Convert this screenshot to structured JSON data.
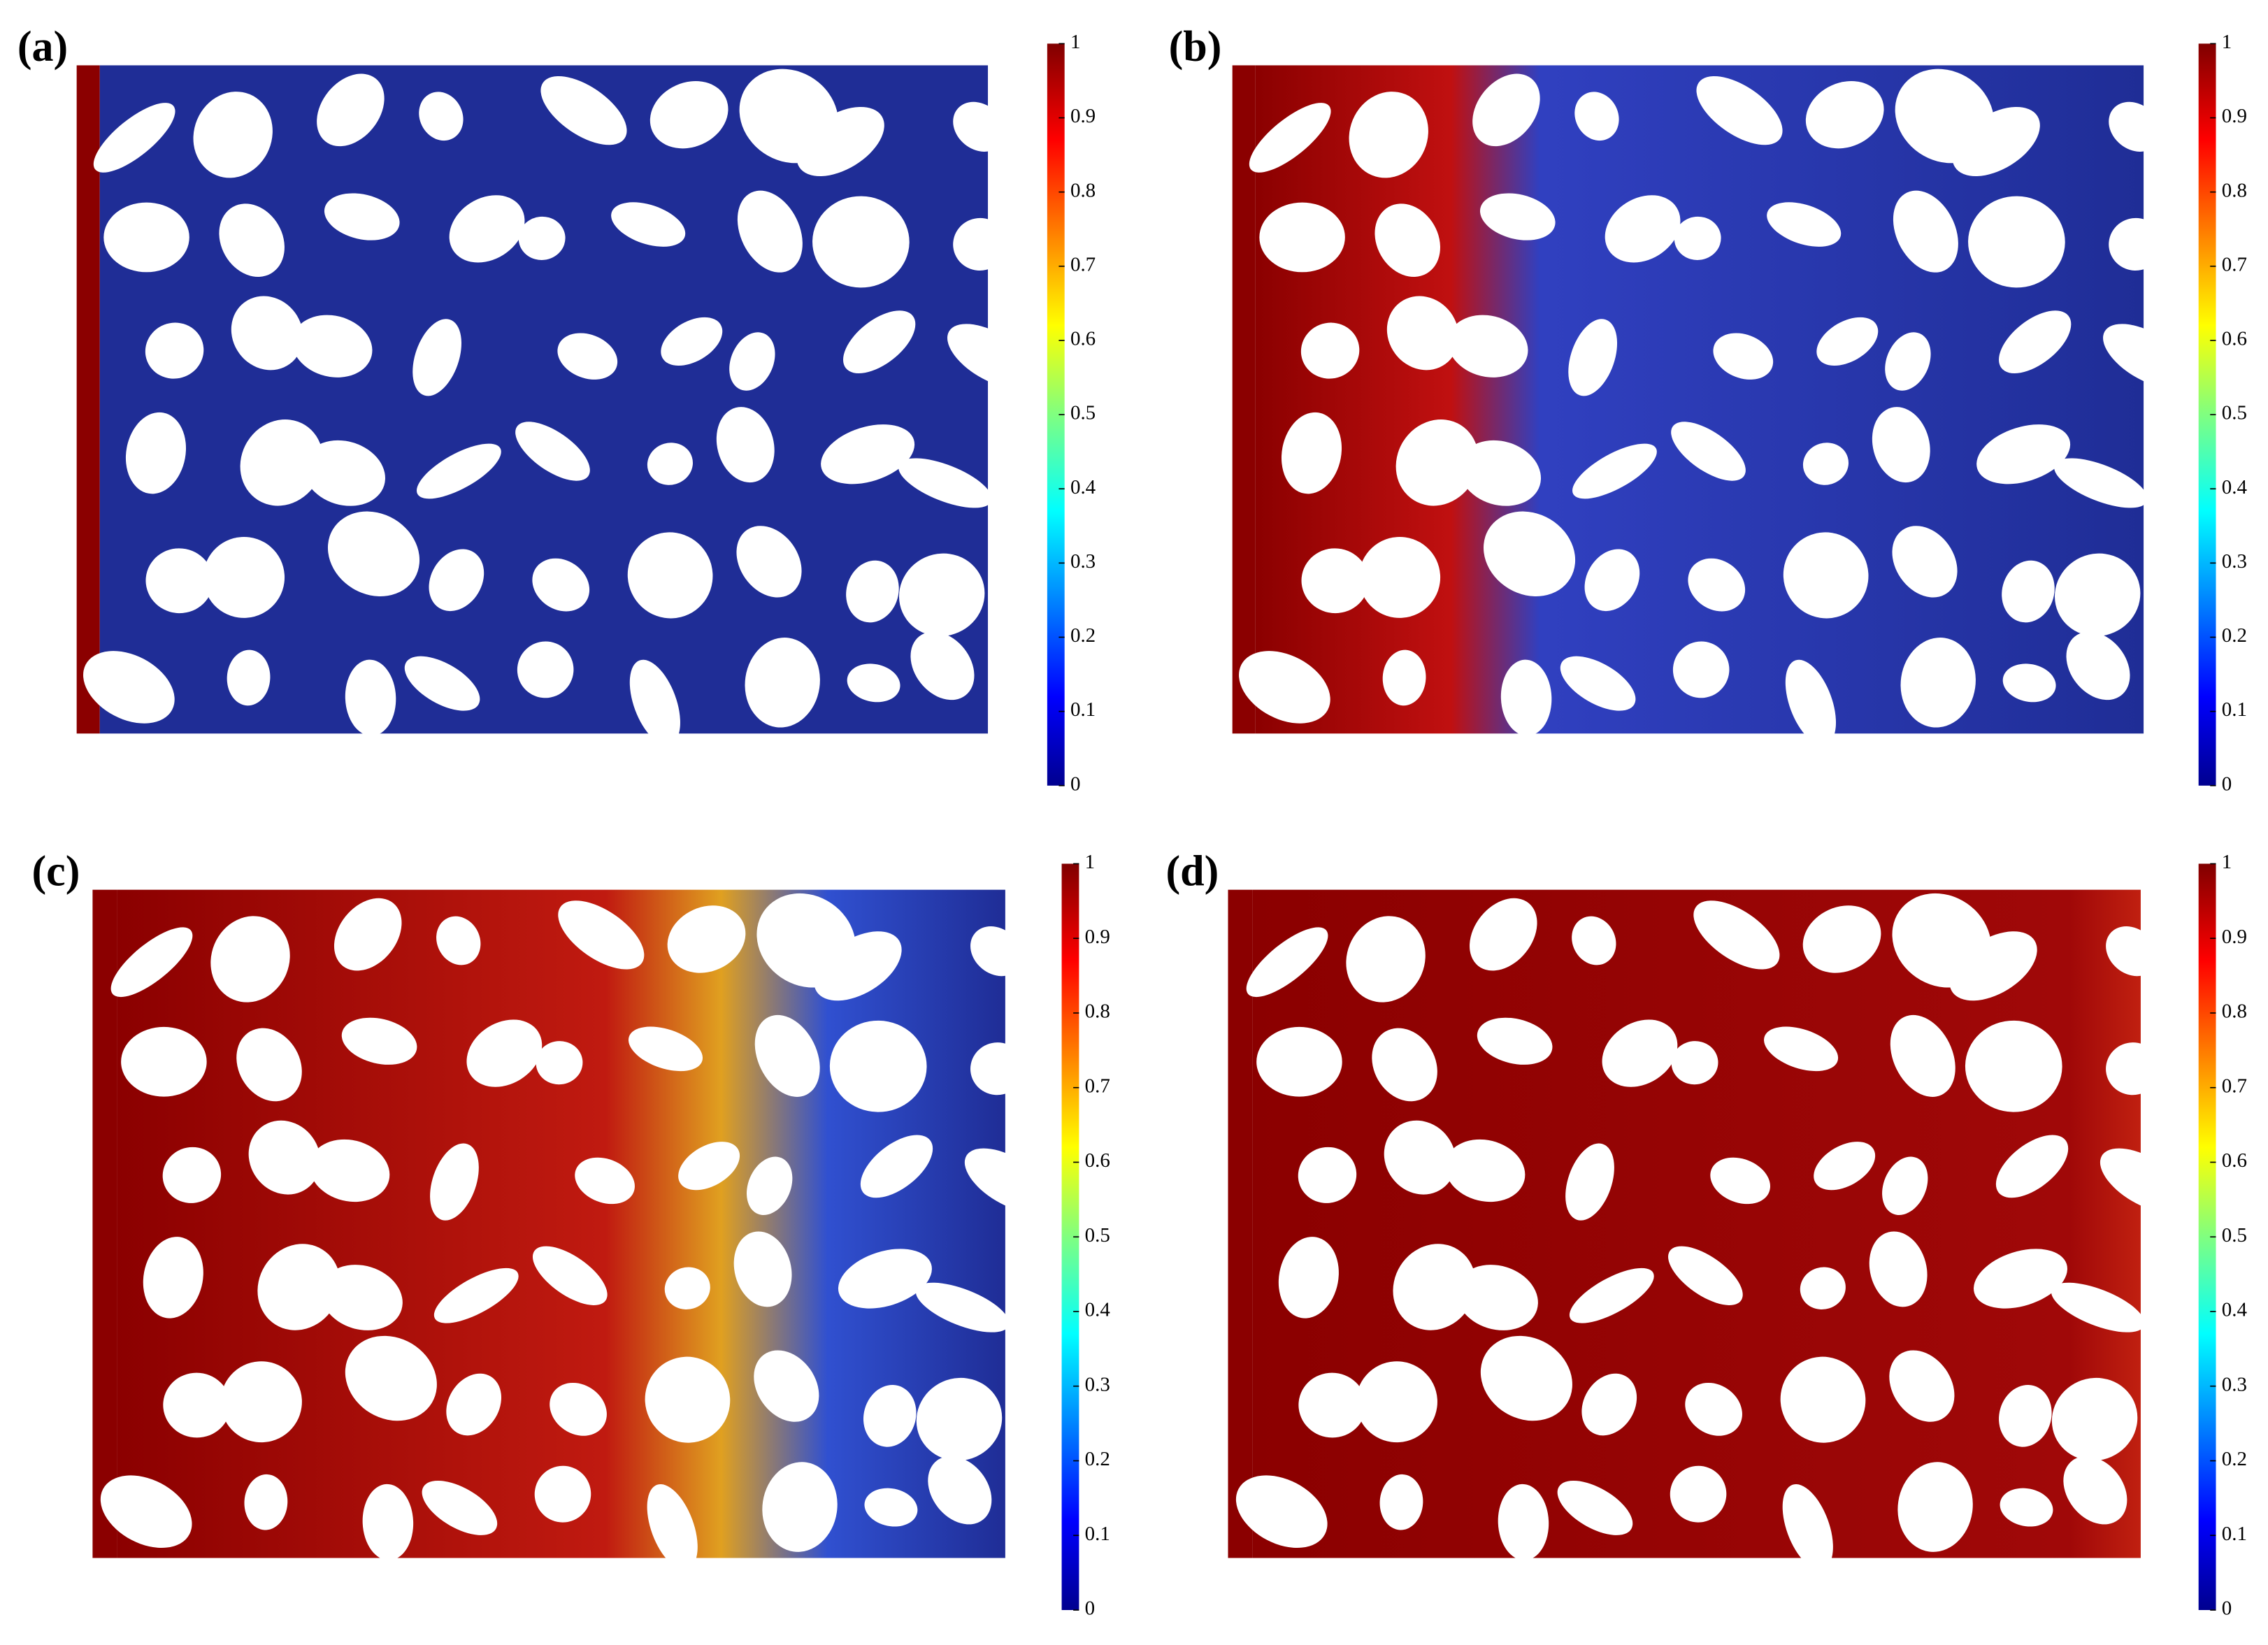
{
  "panels": [
    {
      "label": "(a)",
      "colorbar": {
        "ticks": [
          0,
          0.1,
          0.2,
          0.3,
          0.4,
          0.5,
          0.6,
          0.7,
          0.8,
          0.9,
          1
        ]
      }
    },
    {
      "label": "(b)",
      "colorbar": {
        "ticks": [
          0,
          0.1,
          0.2,
          0.3,
          0.4,
          0.5,
          0.6,
          0.7,
          0.8,
          0.9,
          1
        ]
      }
    },
    {
      "label": "(c)",
      "colorbar": {
        "ticks": [
          0,
          0.1,
          0.2,
          0.3,
          0.4,
          0.5,
          0.6,
          0.7,
          0.8,
          0.9,
          1
        ]
      }
    },
    {
      "label": "(d)",
      "colorbar": {
        "ticks": [
          0,
          0.1,
          0.2,
          0.3,
          0.4,
          0.5,
          0.6,
          0.7,
          0.8,
          0.9,
          1
        ]
      }
    }
  ]
}
